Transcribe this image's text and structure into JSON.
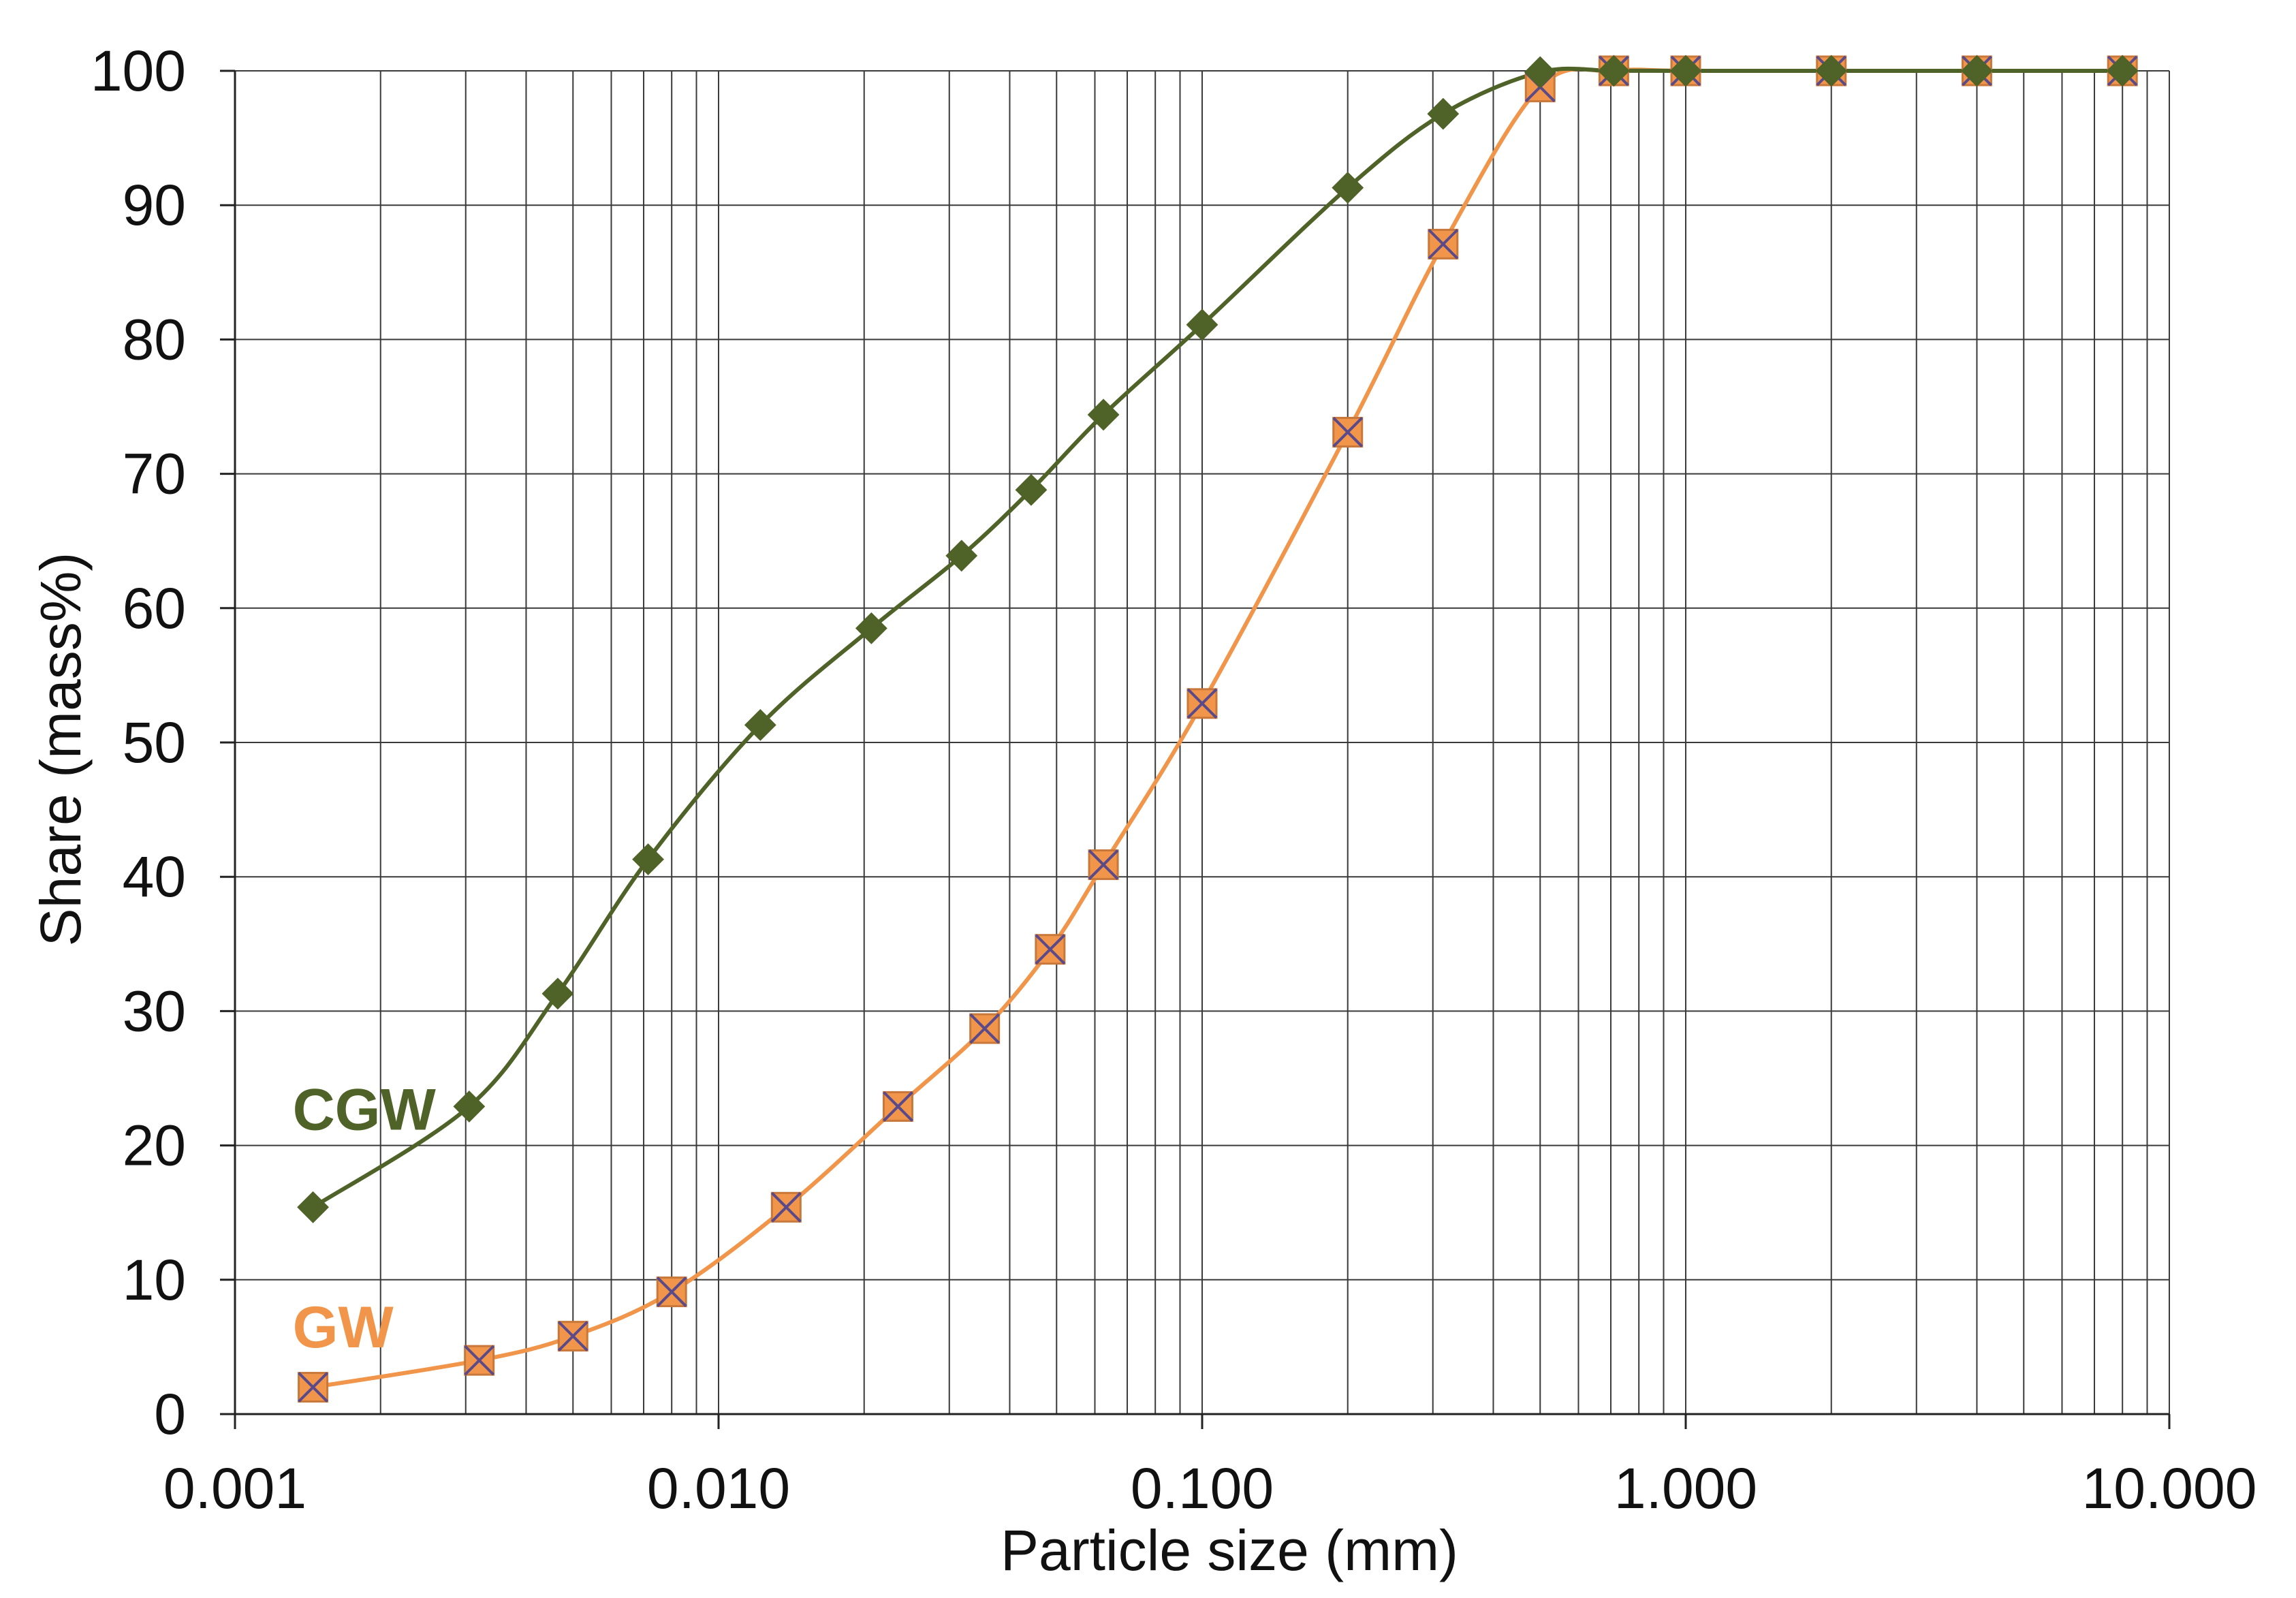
{
  "chart_data": {
    "type": "line",
    "title": "",
    "xlabel": "Particle size (mm)",
    "ylabel": "Share (mass%)",
    "xscale": "log",
    "xlim": [
      0.001,
      10
    ],
    "ylim": [
      0,
      100
    ],
    "grid": true,
    "x_tick_labels": [
      "0.001",
      "0.010",
      "0.100",
      "1.000",
      "10.000"
    ],
    "y_tick_labels": [
      "0",
      "10",
      "20",
      "30",
      "40",
      "50",
      "60",
      "70",
      "80",
      "90",
      "100"
    ],
    "series": [
      {
        "name": "CGW",
        "color": "#4f6228",
        "marker": "diamond",
        "label_position": "left",
        "points": [
          [
            0.00145,
            15.4
          ],
          [
            0.00305,
            22.9
          ],
          [
            0.00465,
            31.3
          ],
          [
            0.00715,
            41.3
          ],
          [
            0.0122,
            51.3
          ],
          [
            0.0207,
            58.5
          ],
          [
            0.0318,
            63.9
          ],
          [
            0.0443,
            68.8
          ],
          [
            0.0625,
            74.4
          ],
          [
            0.1,
            81.1
          ],
          [
            0.2,
            91.3
          ],
          [
            0.315,
            96.8
          ],
          [
            0.5,
            99.9
          ],
          [
            0.71,
            100
          ],
          [
            1.0,
            100
          ],
          [
            2.0,
            100
          ],
          [
            4.0,
            100
          ],
          [
            8.0,
            100
          ]
        ]
      },
      {
        "name": "GW",
        "color": "#f0954a",
        "marker": "box-x",
        "label_position": "left",
        "points": [
          [
            0.00145,
            2.0
          ],
          [
            0.0032,
            4.0
          ],
          [
            0.005,
            5.8
          ],
          [
            0.008,
            9.1
          ],
          [
            0.0138,
            15.4
          ],
          [
            0.0235,
            22.9
          ],
          [
            0.0355,
            28.7
          ],
          [
            0.0485,
            34.6
          ],
          [
            0.0625,
            40.9
          ],
          [
            0.1,
            52.9
          ],
          [
            0.2,
            73.1
          ],
          [
            0.315,
            87.1
          ],
          [
            0.5,
            98.8
          ],
          [
            0.71,
            100
          ],
          [
            1.0,
            100
          ],
          [
            2.0,
            100
          ],
          [
            4.0,
            100
          ],
          [
            8.0,
            100
          ]
        ]
      }
    ]
  }
}
